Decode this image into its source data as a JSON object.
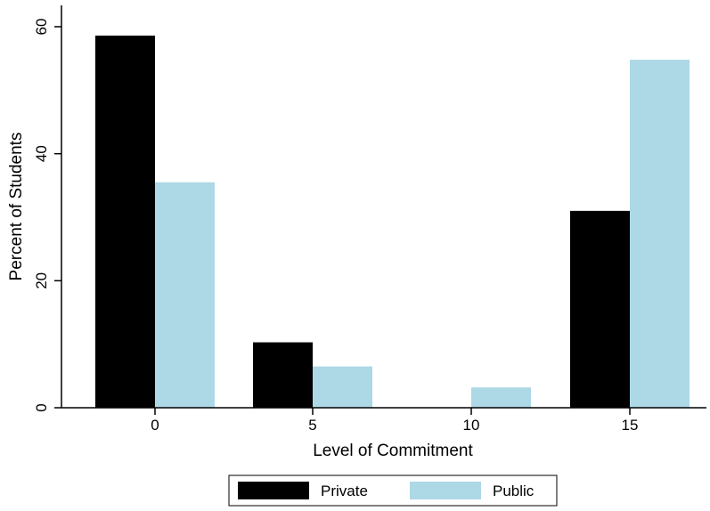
{
  "chart_data": {
    "type": "bar",
    "categories": [
      "0",
      "5",
      "10",
      "15"
    ],
    "series": [
      {
        "name": "Private",
        "values": [
          58.6,
          10.3,
          0,
          31.0
        ],
        "color": "#000000"
      },
      {
        "name": "Public",
        "values": [
          35.5,
          6.5,
          3.2,
          54.8
        ],
        "color": "#add8e6"
      }
    ],
    "xlabel": "Level of Commitment",
    "ylabel": "Percent of Students",
    "ylim": [
      0,
      60
    ],
    "yticks": [
      "0",
      "20",
      "40",
      "60"
    ],
    "grid": false,
    "legend_position": "bottom"
  }
}
